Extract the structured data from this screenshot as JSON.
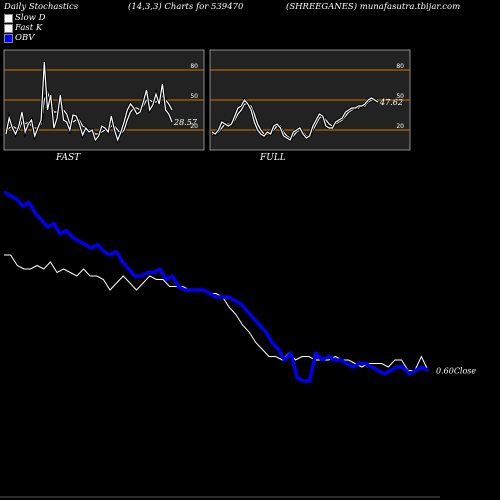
{
  "header": {
    "left": "Daily Stochastics",
    "center": "(14,3,3) Charts for 539470",
    "right": "(SHREEGANES) munafasutra.tbijar.com"
  },
  "legend": [
    {
      "label": "Slow  D",
      "color": "#ffffff"
    },
    {
      "label": "Fast K",
      "color": "#ffffff"
    },
    {
      "label": "OBV",
      "color": "#0000ff"
    }
  ],
  "colors": {
    "background": "#000000",
    "panel": "#222222",
    "level_line": "#cc7700",
    "close_line": "#ffffff",
    "obv_line": "#0000ee"
  },
  "chart_data": [
    {
      "type": "line",
      "title": "FAST",
      "y_ticks": [
        "80",
        "50",
        "20"
      ],
      "levels": [
        80,
        50,
        20
      ],
      "ylim": [
        0,
        100
      ],
      "last_value_label": "28.57",
      "series": [
        {
          "name": "Fast K",
          "values": [
            16,
            32,
            22,
            16,
            24,
            38,
            18,
            26,
            30,
            14,
            22,
            30,
            88,
            40,
            55,
            22,
            32,
            55,
            30,
            28,
            20,
            35,
            34,
            26,
            15,
            22,
            18,
            20,
            10,
            14,
            24,
            22,
            18,
            34,
            20,
            10,
            18,
            28,
            40,
            46,
            42,
            36,
            38,
            48,
            60,
            40,
            45,
            56,
            46,
            66,
            40,
            36,
            28
          ]
        },
        {
          "name": "Slow D",
          "values": [
            18,
            22,
            24,
            22,
            20,
            28,
            26,
            28,
            24,
            22,
            22,
            26,
            50,
            58,
            48,
            38,
            38,
            44,
            40,
            36,
            26,
            28,
            30,
            30,
            24,
            22,
            20,
            20,
            16,
            16,
            18,
            20,
            20,
            24,
            24,
            20,
            16,
            20,
            30,
            38,
            42,
            42,
            40,
            44,
            50,
            50,
            48,
            48,
            50,
            54,
            50,
            46,
            40
          ]
        }
      ]
    },
    {
      "type": "line",
      "title": "FULL",
      "y_ticks": [
        "80",
        "50",
        "20"
      ],
      "levels": [
        80,
        50,
        20
      ],
      "ylim": [
        0,
        100
      ],
      "last_value_label": "47.62",
      "series": [
        {
          "name": "Fast K",
          "values": [
            18,
            16,
            20,
            28,
            26,
            24,
            26,
            34,
            42,
            44,
            50,
            46,
            40,
            28,
            20,
            16,
            14,
            18,
            16,
            24,
            26,
            22,
            14,
            12,
            10,
            18,
            20,
            22,
            16,
            12,
            14,
            24,
            30,
            36,
            34,
            24,
            22,
            22,
            28,
            30,
            32,
            38,
            40,
            42,
            42,
            44,
            44,
            46,
            50,
            52,
            50,
            48
          ]
        },
        {
          "name": "Slow D",
          "values": [
            16,
            16,
            18,
            22,
            26,
            26,
            26,
            30,
            36,
            40,
            46,
            46,
            44,
            36,
            26,
            20,
            16,
            16,
            16,
            20,
            24,
            24,
            18,
            14,
            12,
            14,
            18,
            20,
            18,
            14,
            14,
            20,
            26,
            32,
            34,
            30,
            26,
            24,
            26,
            28,
            30,
            34,
            38,
            40,
            42,
            42,
            44,
            44,
            48,
            50,
            50,
            50
          ]
        }
      ]
    },
    {
      "type": "line",
      "title": "",
      "last_value_label": "0.60",
      "last_value_suffix": "Close",
      "series": [
        {
          "name": "OBV",
          "values": [
            88,
            87,
            86,
            84,
            85,
            82,
            80,
            78,
            79,
            76,
            77,
            75,
            74,
            73,
            72,
            73,
            71,
            70,
            71,
            68,
            66,
            64,
            64,
            65,
            65,
            66,
            63,
            64,
            61,
            60,
            60,
            60,
            60,
            59,
            58,
            58,
            58,
            57,
            56,
            54,
            52,
            50,
            48,
            45,
            43,
            40,
            42,
            35,
            34,
            34,
            42,
            40,
            41,
            40,
            40,
            39,
            38,
            39,
            39,
            38,
            37,
            36,
            37,
            38,
            38,
            36,
            37,
            38,
            37
          ]
        },
        {
          "name": "Close",
          "values": [
            70,
            70,
            67,
            66,
            66,
            67,
            66,
            68,
            65,
            66,
            65,
            64,
            66,
            64,
            64,
            63,
            60,
            62,
            64,
            62,
            60,
            62,
            64,
            63,
            63,
            61,
            61,
            61,
            60,
            60,
            60,
            59,
            59,
            58,
            55,
            53,
            50,
            48,
            45,
            43,
            41,
            41,
            40,
            42,
            40,
            41,
            41,
            40,
            40,
            40,
            41,
            40,
            40,
            39,
            38,
            39,
            39,
            39,
            38,
            40,
            40,
            37,
            37,
            41,
            37
          ]
        }
      ]
    }
  ]
}
